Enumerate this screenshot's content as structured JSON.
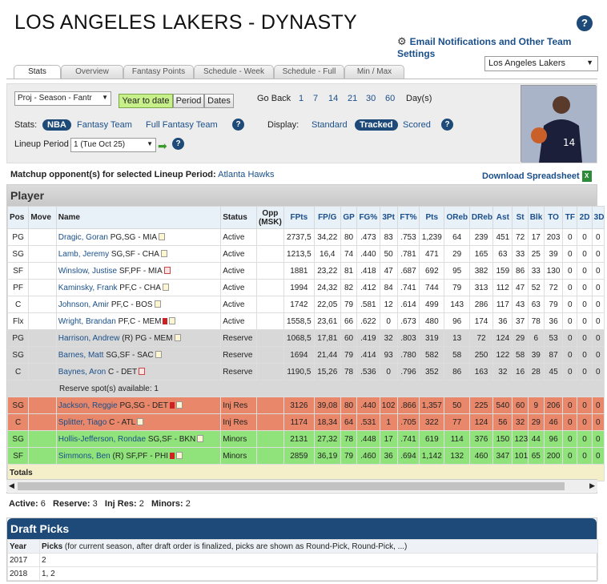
{
  "header": {
    "title": "LOS ANGELES LAKERS - DYNASTY",
    "email_settings": "Email Notifications and Other Team Settings",
    "team_select": "Los Angeles Lakers"
  },
  "tabs": [
    "Stats",
    "Overview",
    "Fantasy Points",
    "Schedule - Week",
    "Schedule - Full",
    "Min / Max"
  ],
  "controls": {
    "proj_select": "Proj - Season - Fantr",
    "time_buttons": [
      "Year to date",
      "Period",
      "Dates"
    ],
    "go_back_label": "Go Back",
    "go_back_options": [
      "1",
      "7",
      "14",
      "21",
      "30",
      "60"
    ],
    "days_label": "Day(s)",
    "stats_label": "Stats:",
    "stats_options": [
      "NBA",
      "Fantasy Team",
      "Full Fantasy Team"
    ],
    "display_label": "Display:",
    "display_options": [
      "Standard",
      "Tracked",
      "Scored"
    ],
    "lineup_label": "Lineup Period",
    "lineup_select": "1 (Tue Oct 25)"
  },
  "matchup": {
    "label": "Matchup opponent(s) for selected Lineup Period:",
    "opponent": "Atlanta Hawks",
    "download": "Download Spreadsheet"
  },
  "player_table": {
    "section": "Player",
    "columns": [
      "Pos",
      "Move",
      "Name",
      "Status",
      "Opp (MSK)",
      "FPts",
      "FP/G",
      "GP",
      "FG%",
      "3Pt",
      "FT%",
      "Pts",
      "OReb",
      "DReb",
      "Ast",
      "St",
      "Blk",
      "TO",
      "TF",
      "2D",
      "3D"
    ],
    "rows": [
      {
        "type": "active",
        "pos": "PG",
        "name": "Dragic, Goran",
        "info": "PG,SG - MIA",
        "status": "Active",
        "stats": [
          "2737,5",
          "34,22",
          "80",
          ".473",
          "83",
          ".753",
          "1,239",
          "64",
          "239",
          "451",
          "72",
          "17",
          "203",
          "0",
          "0",
          "0"
        ]
      },
      {
        "type": "active",
        "pos": "SG",
        "name": "Lamb, Jeremy",
        "info": "SG,SF - CHA",
        "status": "Active",
        "stats": [
          "1213,5",
          "16,4",
          "74",
          ".440",
          "50",
          ".781",
          "471",
          "29",
          "165",
          "63",
          "33",
          "25",
          "39",
          "0",
          "0",
          "0"
        ]
      },
      {
        "type": "active",
        "pos": "SF",
        "name": "Winslow, Justise",
        "info": "SF,PF - MIA",
        "status": "Active",
        "stats": [
          "1881",
          "23,22",
          "81",
          ".418",
          "47",
          ".687",
          "692",
          "95",
          "382",
          "159",
          "86",
          "33",
          "130",
          "0",
          "0",
          "0"
        ]
      },
      {
        "type": "active",
        "pos": "PF",
        "name": "Kaminsky, Frank",
        "info": "PF,C - CHA",
        "status": "Active",
        "stats": [
          "1994",
          "24,32",
          "82",
          ".412",
          "84",
          ".741",
          "744",
          "79",
          "313",
          "112",
          "47",
          "52",
          "72",
          "0",
          "0",
          "0"
        ]
      },
      {
        "type": "active",
        "pos": "C",
        "name": "Johnson, Amir",
        "info": "PF,C - BOS",
        "status": "Active",
        "stats": [
          "1742",
          "22,05",
          "79",
          ".581",
          "12",
          ".614",
          "499",
          "143",
          "286",
          "117",
          "43",
          "63",
          "79",
          "0",
          "0",
          "0"
        ]
      },
      {
        "type": "active",
        "pos": "Flx",
        "name": "Wright, Brandan",
        "info": "PF,C - MEM",
        "status": "Active",
        "stats": [
          "1558,5",
          "23,61",
          "66",
          ".622",
          "0",
          ".673",
          "480",
          "96",
          "174",
          "36",
          "37",
          "78",
          "36",
          "0",
          "0",
          "0"
        ]
      },
      {
        "type": "reserve",
        "pos": "PG",
        "name": "Harrison, Andrew",
        "info": "(R) PG - MEM",
        "status": "Reserve",
        "stats": [
          "1068,5",
          "17,81",
          "60",
          ".419",
          "32",
          ".803",
          "319",
          "13",
          "72",
          "124",
          "29",
          "6",
          "53",
          "0",
          "0",
          "0"
        ]
      },
      {
        "type": "reserve",
        "pos": "SG",
        "name": "Barnes, Matt",
        "info": "SG,SF - SAC",
        "status": "Reserve",
        "stats": [
          "1694",
          "21,44",
          "79",
          ".414",
          "93",
          ".780",
          "582",
          "58",
          "250",
          "122",
          "58",
          "39",
          "87",
          "0",
          "0",
          "0"
        ]
      },
      {
        "type": "reserve",
        "pos": "C",
        "name": "Baynes, Aron",
        "info": "C - DET",
        "status": "Reserve",
        "stats": [
          "1190,5",
          "15,26",
          "78",
          ".536",
          "0",
          ".796",
          "352",
          "86",
          "163",
          "32",
          "16",
          "28",
          "45",
          "0",
          "0",
          "0"
        ]
      },
      {
        "type": "injres",
        "pos": "SG",
        "name": "Jackson, Reggie",
        "info": "PG,SG - DET",
        "status": "Inj Res",
        "stats": [
          "3126",
          "39,08",
          "80",
          ".440",
          "102",
          ".866",
          "1,357",
          "50",
          "225",
          "540",
          "60",
          "9",
          "206",
          "0",
          "0",
          "0"
        ]
      },
      {
        "type": "injres",
        "pos": "C",
        "name": "Splitter, Tiago",
        "info": "C - ATL",
        "status": "Inj Res",
        "stats": [
          "1174",
          "18,34",
          "64",
          ".531",
          "1",
          ".705",
          "322",
          "77",
          "124",
          "56",
          "32",
          "29",
          "46",
          "0",
          "0",
          "0"
        ]
      },
      {
        "type": "minors",
        "pos": "SG",
        "name": "Hollis-Jefferson, Rondae",
        "info": "SG,SF - BKN",
        "status": "Minors",
        "stats": [
          "2131",
          "27,32",
          "78",
          ".448",
          "17",
          ".741",
          "619",
          "114",
          "376",
          "150",
          "123",
          "44",
          "96",
          "0",
          "0",
          "0"
        ]
      },
      {
        "type": "minors",
        "pos": "SF",
        "name": "Simmons, Ben",
        "info": "(R) SF,PF - PHI",
        "status": "Minors",
        "stats": [
          "2859",
          "36,19",
          "79",
          ".460",
          "36",
          ".694",
          "1,142",
          "132",
          "460",
          "347",
          "101",
          "65",
          "200",
          "0",
          "0",
          "0"
        ]
      }
    ],
    "reserve_note": "Reserve spot(s) available: 1",
    "totals_label": "Totals"
  },
  "counts": {
    "active_label": "Active:",
    "active": "6",
    "reserve_label": "Reserve:",
    "reserve": "3",
    "injres_label": "Inj Res:",
    "injres": "2",
    "minors_label": "Minors:",
    "minors": "2"
  },
  "draft": {
    "title": "Draft Picks",
    "col_year": "Year",
    "col_picks": "Picks",
    "picks_note": "(for current season, after draft order is finalized, picks are shown as Round-Pick, Round-Pick, ...)",
    "rows": [
      {
        "year": "2017",
        "picks": "2"
      },
      {
        "year": "2018",
        "picks": "1, 2"
      }
    ]
  }
}
